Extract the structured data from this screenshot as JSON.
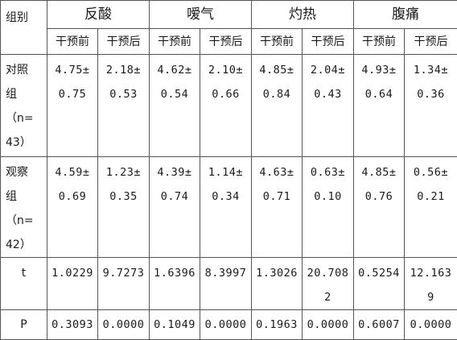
{
  "header": {
    "group_label": "组别",
    "metrics": [
      "反酸",
      "嗳气",
      "灼热",
      "腹痛"
    ],
    "sub_pre": "干预前",
    "sub_post": "干预后"
  },
  "rows": {
    "control": {
      "label_lines": [
        "对照",
        "组",
        "（n=",
        "43）"
      ],
      "cells": [
        [
          "4.75±",
          "0.75"
        ],
        [
          "2.18±",
          "0.53"
        ],
        [
          "4.62±",
          "0.54"
        ],
        [
          "2.10±",
          "0.66"
        ],
        [
          "4.85±",
          "0.84"
        ],
        [
          "2.04±",
          "0.43"
        ],
        [
          "4.93±",
          "0.64"
        ],
        [
          "1.34±",
          "0.36"
        ]
      ]
    },
    "observation": {
      "label_lines": [
        "观察",
        "组",
        "（n=",
        "42）"
      ],
      "cells": [
        [
          "4.59±",
          "0.69"
        ],
        [
          "1.23±",
          "0.35"
        ],
        [
          "4.39±",
          "0.74"
        ],
        [
          "1.14±",
          "0.34"
        ],
        [
          "4.63±",
          "0.71"
        ],
        [
          "0.63±",
          "0.10"
        ],
        [
          "4.85±",
          "0.76"
        ],
        [
          "0.56±",
          "0.21"
        ]
      ]
    },
    "t": {
      "label": "t",
      "cells": [
        [
          "1.0229"
        ],
        [
          "9.7273"
        ],
        [
          "1.6396"
        ],
        [
          "8.3997"
        ],
        [
          "1.3026"
        ],
        [
          "20.708",
          "2"
        ],
        [
          "0.5254"
        ],
        [
          "12.163",
          "9"
        ]
      ]
    },
    "p": {
      "label": "P",
      "cells": [
        "0.3093",
        "0.0000",
        "0.1049",
        "0.0000",
        "0.1963",
        "0.0000",
        "0.6007",
        "0.0000"
      ]
    }
  }
}
